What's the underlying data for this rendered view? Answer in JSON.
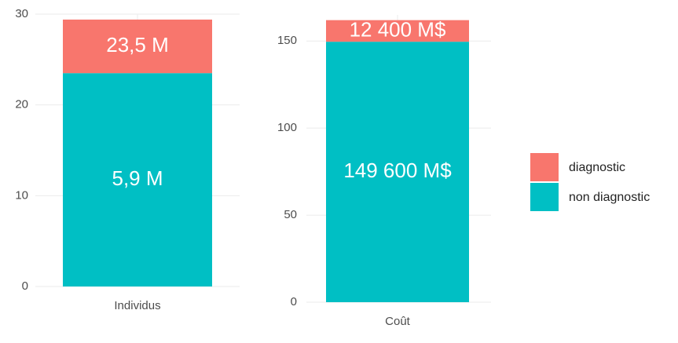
{
  "chart_data": [
    {
      "type": "stacked_bar",
      "categories": [
        "Individus"
      ],
      "series": [
        {
          "name": "non diagnostic",
          "color": "#00bfc4",
          "values": [
            23.5
          ]
        },
        {
          "name": "diagnostic",
          "color": "#f8766d",
          "values": [
            5.9
          ]
        }
      ],
      "annotations": [
        "5,9 M",
        "23,5 M"
      ],
      "ylim": [
        0,
        30
      ],
      "yticks": [
        0,
        10,
        20,
        30
      ],
      "grid": true
    },
    {
      "type": "stacked_bar",
      "categories": [
        "Coût"
      ],
      "series": [
        {
          "name": "non diagnostic",
          "color": "#00bfc4",
          "values": [
            149.6
          ],
          "value_labels": [
            "149 600 M$"
          ]
        },
        {
          "name": "diagnostic",
          "color": "#f8766d",
          "values": [
            12.4
          ],
          "value_labels": [
            "12 400 M$"
          ]
        }
      ],
      "ylim": [
        0,
        165
      ],
      "yticks": [
        0,
        50,
        100,
        150
      ],
      "grid": true,
      "legend": "right"
    }
  ]
}
